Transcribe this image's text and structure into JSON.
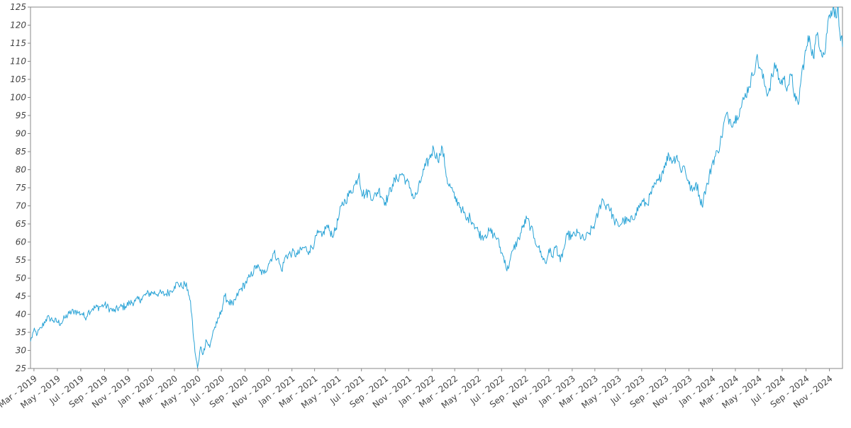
{
  "chart_data": {
    "type": "line",
    "title": "",
    "xlabel": "",
    "ylabel": "",
    "grid": false,
    "legend": "none",
    "line_color": "#29a3d6",
    "axis_color": "#888888",
    "ylim": [
      25,
      125
    ],
    "xlim": [
      "2019-02-20",
      "2024-12-05"
    ],
    "y_ticks": [
      25,
      30,
      35,
      40,
      45,
      50,
      55,
      60,
      65,
      70,
      75,
      80,
      85,
      90,
      95,
      100,
      105,
      110,
      115,
      120,
      125
    ],
    "x_ticks": [
      {
        "date": "2019-03-01",
        "label": "Mar - 2019"
      },
      {
        "date": "2019-05-01",
        "label": "May - 2019"
      },
      {
        "date": "2019-07-01",
        "label": "Jul - 2019"
      },
      {
        "date": "2019-09-01",
        "label": "Sep - 2019"
      },
      {
        "date": "2019-11-01",
        "label": "Nov - 2019"
      },
      {
        "date": "2020-01-01",
        "label": "Jan - 2020"
      },
      {
        "date": "2020-03-01",
        "label": "Mar - 2020"
      },
      {
        "date": "2020-05-01",
        "label": "May - 2020"
      },
      {
        "date": "2020-07-01",
        "label": "Jul - 2020"
      },
      {
        "date": "2020-09-01",
        "label": "Sep - 2020"
      },
      {
        "date": "2020-11-01",
        "label": "Nov - 2020"
      },
      {
        "date": "2021-01-01",
        "label": "Jan - 2021"
      },
      {
        "date": "2021-03-01",
        "label": "Mar - 2021"
      },
      {
        "date": "2021-05-01",
        "label": "May - 2021"
      },
      {
        "date": "2021-07-01",
        "label": "Jul - 2021"
      },
      {
        "date": "2021-09-01",
        "label": "Sep - 2021"
      },
      {
        "date": "2021-11-01",
        "label": "Nov - 2021"
      },
      {
        "date": "2022-01-01",
        "label": "Jan - 2022"
      },
      {
        "date": "2022-03-01",
        "label": "Mar - 2022"
      },
      {
        "date": "2022-05-01",
        "label": "May - 2022"
      },
      {
        "date": "2022-07-01",
        "label": "Jul - 2022"
      },
      {
        "date": "2022-09-01",
        "label": "Sep - 2022"
      },
      {
        "date": "2022-11-01",
        "label": "Nov - 2022"
      },
      {
        "date": "2023-01-01",
        "label": "Jan - 2023"
      },
      {
        "date": "2023-03-01",
        "label": "Mar - 2023"
      },
      {
        "date": "2023-05-01",
        "label": "May - 2023"
      },
      {
        "date": "2023-07-01",
        "label": "Jul - 2023"
      },
      {
        "date": "2023-09-01",
        "label": "Sep - 2023"
      },
      {
        "date": "2023-11-01",
        "label": "Nov - 2023"
      },
      {
        "date": "2024-01-01",
        "label": "Jan - 2024"
      },
      {
        "date": "2024-03-01",
        "label": "Mar - 2024"
      },
      {
        "date": "2024-05-01",
        "label": "May - 2024"
      },
      {
        "date": "2024-07-01",
        "label": "Jul - 2024"
      },
      {
        "date": "2024-09-01",
        "label": "Sep - 2024"
      },
      {
        "date": "2024-11-01",
        "label": "Nov - 2024"
      }
    ],
    "series": [
      {
        "points": [
          [
            "2019-02-20",
            32.5
          ],
          [
            "2019-02-28",
            35.3
          ],
          [
            "2019-03-10",
            34.6
          ],
          [
            "2019-03-20",
            36.2
          ],
          [
            "2019-04-01",
            38.6
          ],
          [
            "2019-04-10",
            39.0
          ],
          [
            "2019-04-20",
            38.3
          ],
          [
            "2019-05-01",
            37.9
          ],
          [
            "2019-05-10",
            37.5
          ],
          [
            "2019-05-20",
            38.9
          ],
          [
            "2019-06-01",
            40.2
          ],
          [
            "2019-06-15",
            41.0
          ],
          [
            "2019-06-25",
            40.4
          ],
          [
            "2019-07-05",
            40.2
          ],
          [
            "2019-07-12",
            39.0
          ],
          [
            "2019-07-20",
            40.6
          ],
          [
            "2019-08-01",
            41.6
          ],
          [
            "2019-08-20",
            42.1
          ],
          [
            "2019-09-01",
            42.6
          ],
          [
            "2019-09-15",
            41.5
          ],
          [
            "2019-09-25",
            40.8
          ],
          [
            "2019-10-10",
            41.9
          ],
          [
            "2019-10-25",
            42.2
          ],
          [
            "2019-11-05",
            43.1
          ],
          [
            "2019-11-20",
            43.6
          ],
          [
            "2019-12-05",
            44.3
          ],
          [
            "2019-12-20",
            45.6
          ],
          [
            "2020-01-05",
            46.0
          ],
          [
            "2020-01-20",
            45.8
          ],
          [
            "2020-02-05",
            45.5
          ],
          [
            "2020-02-20",
            46.4
          ],
          [
            "2020-03-01",
            47.8
          ],
          [
            "2020-03-10",
            48.6
          ],
          [
            "2020-03-20",
            47.6
          ],
          [
            "2020-03-28",
            48.4
          ],
          [
            "2020-04-05",
            46.8
          ],
          [
            "2020-04-10",
            44.0
          ],
          [
            "2020-04-15",
            40.0
          ],
          [
            "2020-04-20",
            33.0
          ],
          [
            "2020-04-25",
            28.5
          ],
          [
            "2020-04-30",
            25.2
          ],
          [
            "2020-05-04",
            27.5
          ],
          [
            "2020-05-08",
            31.0
          ],
          [
            "2020-05-15",
            29.0
          ],
          [
            "2020-05-22",
            33.0
          ],
          [
            "2020-06-01",
            30.8
          ],
          [
            "2020-06-10",
            35.5
          ],
          [
            "2020-06-20",
            37.5
          ],
          [
            "2020-07-01",
            41.0
          ],
          [
            "2020-07-10",
            45.0
          ],
          [
            "2020-07-20",
            43.5
          ],
          [
            "2020-08-01",
            42.5
          ],
          [
            "2020-08-15",
            46.0
          ],
          [
            "2020-09-01",
            48.5
          ],
          [
            "2020-09-15",
            50.5
          ],
          [
            "2020-10-01",
            53.5
          ],
          [
            "2020-10-10",
            52.0
          ],
          [
            "2020-10-20",
            51.2
          ],
          [
            "2020-11-01",
            54.0
          ],
          [
            "2020-11-15",
            57.0
          ],
          [
            "2020-11-25",
            55.5
          ],
          [
            "2020-12-05",
            52.0
          ],
          [
            "2020-12-15",
            56.0
          ],
          [
            "2021-01-01",
            57.0
          ],
          [
            "2021-01-15",
            56.5
          ],
          [
            "2021-02-01",
            58.5
          ],
          [
            "2021-02-15",
            57.5
          ],
          [
            "2021-03-01",
            60.0
          ],
          [
            "2021-03-10",
            62.5
          ],
          [
            "2021-03-20",
            61.5
          ],
          [
            "2021-04-01",
            64.5
          ],
          [
            "2021-04-10",
            63.0
          ],
          [
            "2021-04-20",
            62.0
          ],
          [
            "2021-05-01",
            66.0
          ],
          [
            "2021-05-10",
            70.0
          ],
          [
            "2021-05-20",
            71.5
          ],
          [
            "2021-06-01",
            73.5
          ],
          [
            "2021-06-15",
            76.0
          ],
          [
            "2021-06-25",
            79.0
          ],
          [
            "2021-07-01",
            74.0
          ],
          [
            "2021-07-10",
            73.0
          ],
          [
            "2021-07-20",
            74.0
          ],
          [
            "2021-08-01",
            72.0
          ],
          [
            "2021-08-15",
            74.5
          ],
          [
            "2021-09-01",
            71.0
          ],
          [
            "2021-09-10",
            73.0
          ],
          [
            "2021-09-20",
            76.0
          ],
          [
            "2021-10-01",
            77.5
          ],
          [
            "2021-10-15",
            79.0
          ],
          [
            "2021-10-25",
            77.0
          ],
          [
            "2021-11-05",
            75.0
          ],
          [
            "2021-11-15",
            72.0
          ],
          [
            "2021-11-25",
            74.0
          ],
          [
            "2021-12-05",
            78.0
          ],
          [
            "2021-12-15",
            81.0
          ],
          [
            "2021-12-25",
            83.0
          ],
          [
            "2022-01-05",
            86.0
          ],
          [
            "2022-01-15",
            83.0
          ],
          [
            "2022-01-22",
            84.0
          ],
          [
            "2022-01-28",
            86.0
          ],
          [
            "2022-02-05",
            80.0
          ],
          [
            "2022-02-12",
            76.0
          ],
          [
            "2022-02-20",
            75.0
          ],
          [
            "2022-03-01",
            72.0
          ],
          [
            "2022-03-10",
            71.0
          ],
          [
            "2022-03-20",
            69.0
          ],
          [
            "2022-04-01",
            66.0
          ],
          [
            "2022-04-10",
            67.0
          ],
          [
            "2022-04-20",
            65.0
          ],
          [
            "2022-05-01",
            63.0
          ],
          [
            "2022-05-10",
            61.5
          ],
          [
            "2022-05-20",
            62.0
          ],
          [
            "2022-06-01",
            63.0
          ],
          [
            "2022-06-10",
            62.0
          ],
          [
            "2022-06-20",
            61.0
          ],
          [
            "2022-07-01",
            57.0
          ],
          [
            "2022-07-10",
            55.0
          ],
          [
            "2022-07-15",
            52.0
          ],
          [
            "2022-07-22",
            54.5
          ],
          [
            "2022-08-01",
            58.0
          ],
          [
            "2022-08-15",
            61.0
          ],
          [
            "2022-08-25",
            64.0
          ],
          [
            "2022-09-05",
            66.5
          ],
          [
            "2022-09-15",
            64.0
          ],
          [
            "2022-09-25",
            61.0
          ],
          [
            "2022-10-05",
            58.5
          ],
          [
            "2022-10-15",
            56.0
          ],
          [
            "2022-10-25",
            54.0
          ],
          [
            "2022-11-01",
            58.0
          ],
          [
            "2022-11-10",
            56.0
          ],
          [
            "2022-11-20",
            59.0
          ],
          [
            "2022-12-01",
            54.5
          ],
          [
            "2022-12-10",
            58.0
          ],
          [
            "2022-12-20",
            62.0
          ],
          [
            "2023-01-01",
            61.5
          ],
          [
            "2023-01-15",
            62.5
          ],
          [
            "2023-02-01",
            60.5
          ],
          [
            "2023-02-15",
            62.5
          ],
          [
            "2023-03-01",
            65.0
          ],
          [
            "2023-03-10",
            68.0
          ],
          [
            "2023-03-20",
            72.0
          ],
          [
            "2023-03-28",
            70.0
          ],
          [
            "2023-04-05",
            70.5
          ],
          [
            "2023-04-20",
            66.0
          ],
          [
            "2023-05-01",
            64.5
          ],
          [
            "2023-05-15",
            66.0
          ],
          [
            "2023-06-01",
            65.5
          ],
          [
            "2023-06-15",
            68.0
          ],
          [
            "2023-07-01",
            71.0
          ],
          [
            "2023-07-15",
            70.5
          ],
          [
            "2023-08-01",
            75.0
          ],
          [
            "2023-08-15",
            77.0
          ],
          [
            "2023-09-01",
            82.0
          ],
          [
            "2023-09-10",
            84.0
          ],
          [
            "2023-09-20",
            82.5
          ],
          [
            "2023-10-01",
            84.0
          ],
          [
            "2023-10-10",
            80.0
          ],
          [
            "2023-10-20",
            81.0
          ],
          [
            "2023-11-01",
            76.0
          ],
          [
            "2023-11-10",
            74.0
          ],
          [
            "2023-11-20",
            76.5
          ],
          [
            "2023-11-28",
            73.0
          ],
          [
            "2023-12-05",
            70.0
          ],
          [
            "2023-12-12",
            74.0
          ],
          [
            "2023-12-20",
            76.0
          ],
          [
            "2024-01-01",
            82.0
          ],
          [
            "2024-01-15",
            85.0
          ],
          [
            "2024-01-25",
            89.0
          ],
          [
            "2024-02-05",
            95.0
          ],
          [
            "2024-02-15",
            94.0
          ],
          [
            "2024-02-25",
            93.0
          ],
          [
            "2024-03-05",
            95.0
          ],
          [
            "2024-03-15",
            97.0
          ],
          [
            "2024-03-25",
            100.0
          ],
          [
            "2024-04-05",
            103.0
          ],
          [
            "2024-04-15",
            106.0
          ],
          [
            "2024-04-25",
            111.0
          ],
          [
            "2024-05-05",
            108.0
          ],
          [
            "2024-05-15",
            104.0
          ],
          [
            "2024-05-25",
            101.0
          ],
          [
            "2024-06-05",
            106.0
          ],
          [
            "2024-06-15",
            109.0
          ],
          [
            "2024-06-25",
            104.0
          ],
          [
            "2024-07-05",
            105.0
          ],
          [
            "2024-07-15",
            103.0
          ],
          [
            "2024-07-25",
            106.0
          ],
          [
            "2024-08-05",
            99.0
          ],
          [
            "2024-08-12",
            98.0
          ],
          [
            "2024-08-20",
            106.0
          ],
          [
            "2024-09-01",
            113.0
          ],
          [
            "2024-09-10",
            117.0
          ],
          [
            "2024-09-20",
            111.0
          ],
          [
            "2024-10-01",
            118.0
          ],
          [
            "2024-10-10",
            113.0
          ],
          [
            "2024-10-20",
            112.0
          ],
          [
            "2024-10-28",
            121.0
          ],
          [
            "2024-11-05",
            124.0
          ],
          [
            "2024-11-12",
            125.0
          ],
          [
            "2024-11-18",
            122.0
          ],
          [
            "2024-11-24",
            125.5
          ],
          [
            "2024-11-28",
            118.0
          ],
          [
            "2024-12-02",
            117.0
          ],
          [
            "2024-12-05",
            114.0
          ]
        ]
      }
    ]
  }
}
